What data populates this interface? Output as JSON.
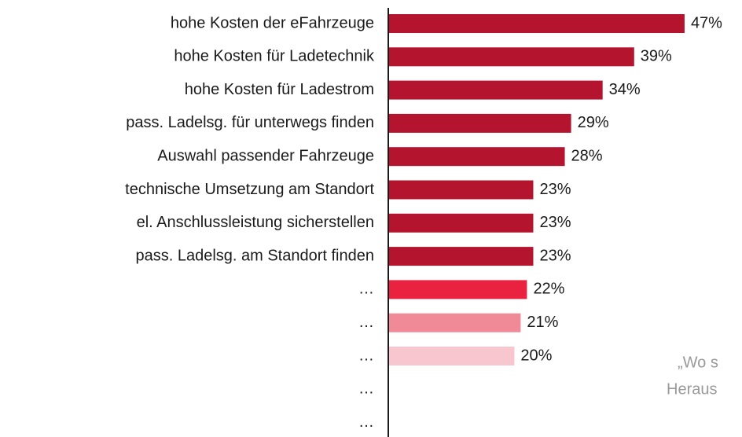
{
  "chart_data": {
    "type": "bar",
    "orientation": "horizontal",
    "categories": [
      "hohe Kosten der eFahrzeuge",
      "hohe Kosten für Ladetechnik",
      "hohe Kosten für Ladestrom",
      "pass. Ladelsg. für unterwegs finden",
      "Auswahl passender Fahrzeuge",
      "technische Umsetzung am Standort",
      "el. Anschlussleistung sicherstellen",
      "pass. Ladelsg. am Standort finden",
      "…",
      "…",
      "…",
      "…",
      "…"
    ],
    "values": [
      47,
      39,
      34,
      29,
      28,
      23,
      23,
      23,
      22,
      21,
      20,
      null,
      null
    ],
    "value_labels": [
      "47%",
      "39%",
      "34%",
      "29%",
      "28%",
      "23%",
      "23%",
      "23%",
      "22%",
      "21%",
      "20%",
      null,
      null
    ],
    "colors": [
      "#b5142f",
      "#b5142f",
      "#b5142f",
      "#b5142f",
      "#b5142f",
      "#b5142f",
      "#b5142f",
      "#b5142f",
      "#e8223f",
      "#f08a96",
      "#f8c6ce",
      null,
      null
    ],
    "xlim": [
      0,
      50
    ],
    "annotations": [
      "„Wo s",
      "Heraus"
    ]
  }
}
